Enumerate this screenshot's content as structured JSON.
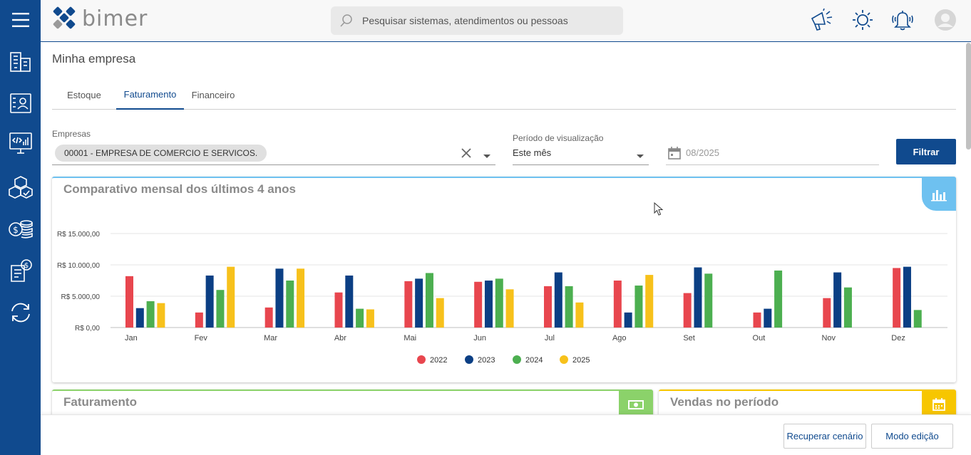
{
  "brand": {
    "name": "bimer"
  },
  "search": {
    "placeholder": "Pesquisar sistemas, atendimentos ou pessoas"
  },
  "sidebar": {
    "items": [
      {
        "name": "menu-icon"
      },
      {
        "name": "buildings-icon"
      },
      {
        "name": "contacts-icon"
      },
      {
        "name": "code-dashboard-icon"
      },
      {
        "name": "boxes-icon"
      },
      {
        "name": "coins-icon"
      },
      {
        "name": "invoice-icon"
      },
      {
        "name": "sync-icon"
      }
    ]
  },
  "page": {
    "title": "Minha empresa"
  },
  "tabs": [
    {
      "label": "Estoque",
      "active": false
    },
    {
      "label": "Faturamento",
      "active": true
    },
    {
      "label": "Financeiro",
      "active": false
    }
  ],
  "filters": {
    "empresas_label": "Empresas",
    "empresa_chip": "00001 - EMPRESA DE COMERCIO E SERVICOS.",
    "periodo_label": "Período de visualização",
    "periodo_value": "Este mês",
    "date_value": "08/2025",
    "filter_button": "Filtrar"
  },
  "chart_card": {
    "title": "Comparativo mensal dos últimos 4 anos"
  },
  "chart_data": {
    "type": "bar",
    "title": "Comparativo mensal dos últimos 4 anos",
    "categories": [
      "Jan",
      "Fev",
      "Mar",
      "Abr",
      "Mai",
      "Jun",
      "Jul",
      "Ago",
      "Set",
      "Out",
      "Nov",
      "Dez"
    ],
    "series": [
      {
        "name": "2022",
        "color": "#e8464e",
        "values": [
          8200,
          2400,
          3200,
          5600,
          7400,
          7300,
          6600,
          7500,
          5500,
          2400,
          4700,
          9500
        ]
      },
      {
        "name": "2023",
        "color": "#0b3f84",
        "values": [
          3100,
          8300,
          9400,
          8300,
          7800,
          7500,
          8800,
          2400,
          9600,
          3000,
          8800,
          9700
        ]
      },
      {
        "name": "2024",
        "color": "#4caf50",
        "values": [
          4200,
          6000,
          7500,
          3000,
          8700,
          7800,
          6600,
          6700,
          8600,
          9100,
          6400,
          2800
        ]
      },
      {
        "name": "2025",
        "color": "#f7c11b",
        "values": [
          3900,
          9700,
          9400,
          2900,
          4700,
          6100,
          4000,
          8400,
          null,
          null,
          null,
          null
        ]
      }
    ],
    "yticks": [
      "R$ 0,00",
      "R$ 5.000,00",
      "R$ 10.000,00",
      "R$ 15.000,00"
    ],
    "ylim": [
      0,
      15000
    ],
    "grid": true,
    "legend": "bottom-center"
  },
  "cards": {
    "faturamento_title": "Faturamento",
    "vendas_title": "Vendas no período"
  },
  "footer": {
    "recuperar": "Recuperar cenário",
    "modo_edicao": "Modo edição"
  },
  "colors": {
    "brand_blue": "#104a8e",
    "chart_accent": "#6ec1f0",
    "faturamento_accent": "#8bd26a",
    "vendas_accent": "#f7c600"
  }
}
